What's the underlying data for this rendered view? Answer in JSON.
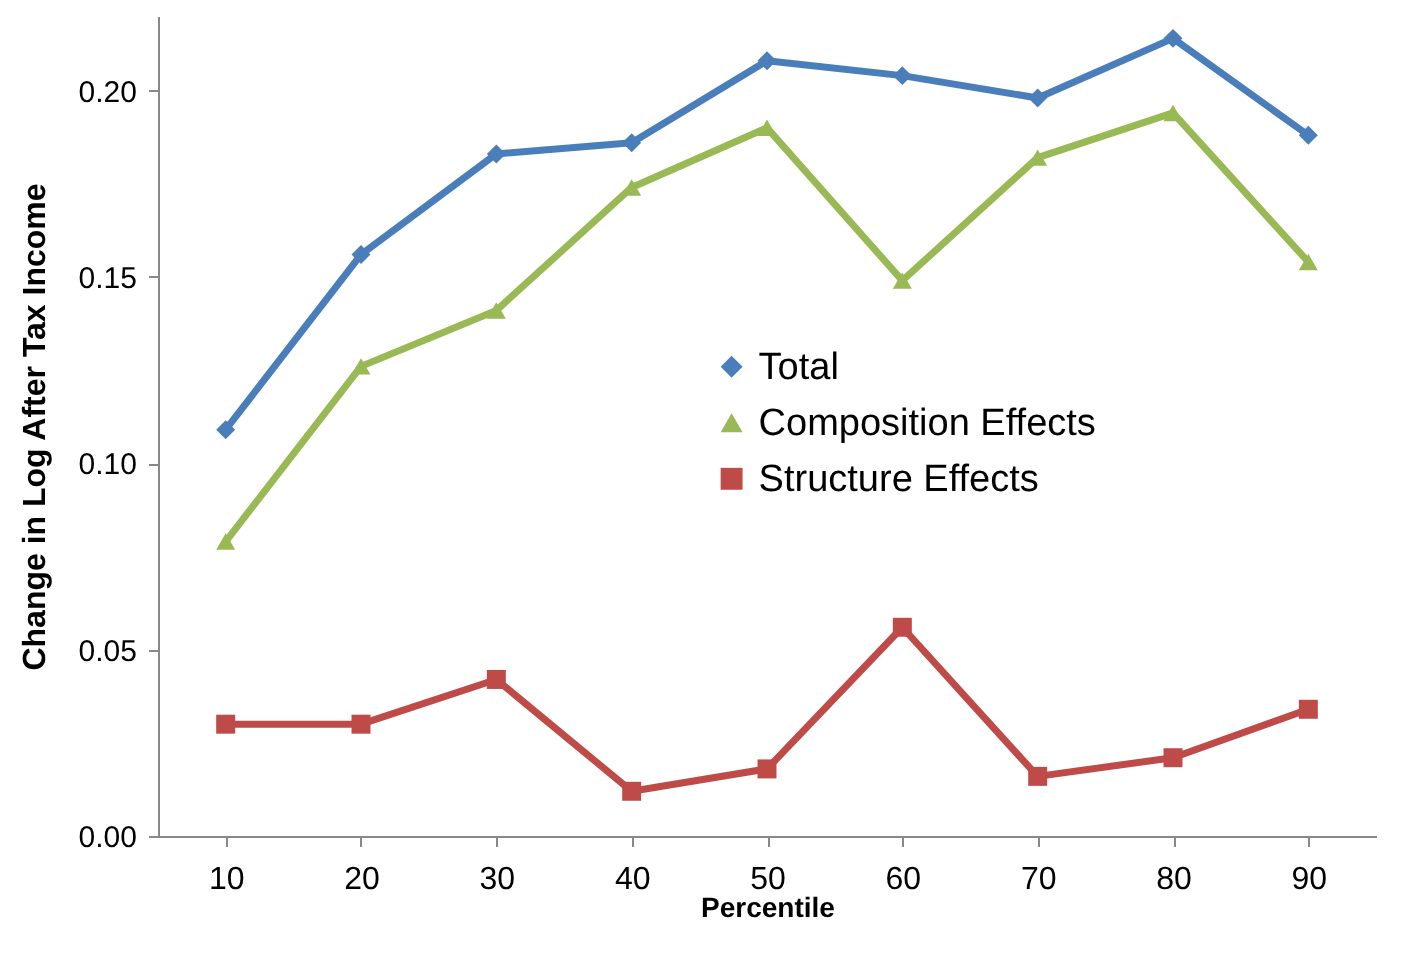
{
  "chart_data": {
    "type": "line",
    "xlabel": "Percentile",
    "ylabel": "Change in Log After Tax Income",
    "categories": [
      "10",
      "20",
      "30",
      "40",
      "50",
      "60",
      "70",
      "80",
      "90"
    ],
    "series": [
      {
        "name": "Total",
        "color": "#4a7ebb",
        "marker": "diamond",
        "values": [
          0.109,
          0.156,
          0.183,
          0.186,
          0.208,
          0.204,
          0.198,
          0.214,
          0.188
        ]
      },
      {
        "name": "Composition Effects",
        "color": "#98b954",
        "marker": "triangle",
        "values": [
          0.079,
          0.126,
          0.141,
          0.174,
          0.19,
          0.149,
          0.182,
          0.194,
          0.154
        ]
      },
      {
        "name": "Structure Effects",
        "color": "#be4b48",
        "marker": "square",
        "values": [
          0.03,
          0.03,
          0.042,
          0.012,
          0.018,
          0.056,
          0.016,
          0.021,
          0.034
        ]
      }
    ],
    "ylim": [
      0,
      0.22
    ],
    "yticks": [
      {
        "value": 0,
        "label": "0.00"
      },
      {
        "value": 0.05,
        "label": "0.05"
      },
      {
        "value": 0.1,
        "label": "0.10"
      },
      {
        "value": 0.15,
        "label": "0.15"
      },
      {
        "value": 0.2,
        "label": "0.20"
      }
    ],
    "grid": false,
    "legend": "center",
    "line_style": "solid"
  }
}
